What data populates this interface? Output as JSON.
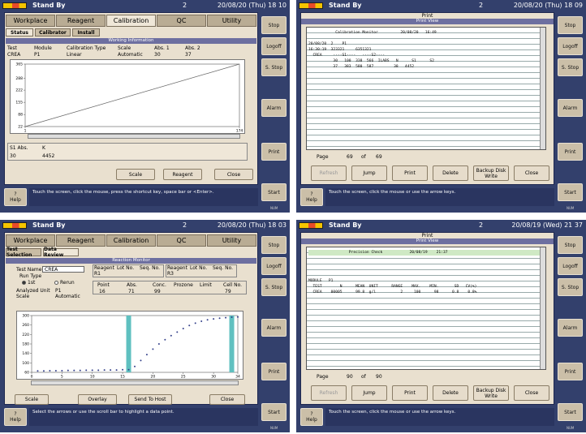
{
  "screens": [
    {
      "kind": "calibration",
      "mode": "Stand By",
      "count": "2",
      "datetime": "20/08/20 (Thu) 18 10",
      "tabs": [
        "Workplace",
        "Reagent",
        "Calibration",
        "QC",
        "Utility"
      ],
      "active_tab": 2,
      "subtabs": [
        "Status",
        "Calibrator",
        "Install"
      ],
      "active_subtab": 0,
      "section": "Working Information",
      "info": {
        "headers": [
          "Test",
          "Module",
          "Calibration Type",
          "Scale",
          "Abs. 1",
          "Abs. 2"
        ],
        "values": [
          "CREA",
          "P1",
          "Linear",
          "Automatic",
          "30",
          "37"
        ]
      },
      "chart": {
        "type": "line",
        "x": [
          1,
          174
        ],
        "values": [
          22,
          365
        ],
        "xlim": [
          1,
          174
        ],
        "ylim": [
          22,
          365
        ],
        "xticks": [
          1,
          174
        ],
        "yticks": [
          22,
          88,
          155,
          222,
          288,
          365
        ]
      },
      "abs": {
        "headers": [
          "S1 Abs.",
          "K"
        ],
        "values": [
          "30",
          "4452"
        ]
      },
      "buttons": [
        "Scale",
        "Reagent",
        "Close"
      ],
      "side_buttons": [
        "Stop",
        "Logoff",
        "S. Stop",
        "Alarm",
        "Print",
        "Start"
      ],
      "help_icon": "?",
      "help": "Help",
      "message": "Touch the screen, click the mouse, press the shortcut key, space bar or <Enter>.",
      "status": "NUM"
    },
    {
      "kind": "print",
      "mode": "Stand By",
      "count": "2",
      "datetime": "20/08/20 (Thu) 18 09",
      "title": "Print",
      "subtitle": "Print View",
      "doc_lines": [
        "            Calibration Monitor          20/08/20   16:49",
        "",
        "20/08/20  2    P1",
        "16:30:19  323321     6351321",
        "  CREA     ----S1----   ----S2----",
        "           30   100  338  566  ILABS   N      S1      S2",
        "           37   383  580  587         38   4452"
      ],
      "highlight_first": false,
      "page_label": "Page",
      "page": "69",
      "of_label": "of",
      "pages": "69",
      "buttons": [
        "Refresh",
        "Jump",
        "Print",
        "Delete",
        "Backup Disk Write",
        "Close"
      ],
      "disabled_button": 0,
      "side_buttons": [
        "Stop",
        "Logoff",
        "S. Stop",
        "Alarm",
        "Print",
        "Start"
      ],
      "help_icon": "?",
      "help": "Help",
      "message": "Touch the screen, click the mouse or use the arrow keys.",
      "status": "NUM"
    },
    {
      "kind": "reaction",
      "mode": "Stand By",
      "count": "2",
      "datetime": "20/08/20 (Thu) 18 03",
      "tabs": [
        "Workplace",
        "Reagent",
        "Calibration",
        "QC",
        "Utility"
      ],
      "active_tab": -1,
      "subtabs": [
        "Test Selection",
        "Data Review"
      ],
      "active_subtab": 1,
      "section": "Reaction Monitor",
      "form": {
        "test_name_label": "Test Name",
        "test_name": "CREA",
        "run_type_label": "Run Type",
        "run_options": [
          "1st",
          "Rerun"
        ],
        "run_selected": 0,
        "unit_label": "Analyzed Unit",
        "unit": "P1",
        "scale_label": "Scale",
        "scale": "Automatic"
      },
      "reagents": [
        {
          "headers": [
            "Reagent",
            "Lot No.",
            "Seq. No."
          ],
          "row": [
            "R1"
          ]
        },
        {
          "headers": [
            "Reagent",
            "Lot No.",
            "Seq. No."
          ],
          "row": [
            "R3"
          ]
        }
      ],
      "point": {
        "headers": [
          "Point",
          "Abs.",
          "Conc.",
          "Prozone",
          "Limit",
          "Cell No."
        ],
        "values": [
          "16",
          "71",
          "99",
          null,
          null,
          "79"
        ]
      },
      "chart": {
        "type": "scatter",
        "x": [
          1,
          2,
          3,
          4,
          5,
          6,
          7,
          8,
          9,
          10,
          11,
          12,
          13,
          14,
          15,
          16,
          17,
          18,
          19,
          20,
          21,
          22,
          23,
          24,
          25,
          26,
          27,
          28,
          29,
          30,
          31,
          32,
          33,
          34
        ],
        "values": [
          66,
          66,
          67,
          67,
          67,
          68,
          68,
          68,
          69,
          69,
          69,
          70,
          70,
          70,
          71,
          71,
          85,
          110,
          135,
          158,
          180,
          198,
          215,
          230,
          245,
          258,
          268,
          276,
          282,
          286,
          289,
          291,
          293,
          294
        ],
        "highlight_x": [
          16,
          33
        ],
        "xlim": [
          0,
          34
        ],
        "ylim": [
          60,
          300
        ],
        "xticks": [
          0,
          5,
          10,
          15,
          20,
          25,
          30,
          34
        ],
        "yticks": [
          60,
          100,
          140,
          180,
          220,
          260,
          300
        ]
      },
      "buttons": [
        "Scale",
        "Overlay",
        "Send To Host",
        "Close"
      ],
      "side_buttons": [
        "Stop",
        "Logoff",
        "S. Stop",
        "Alarm",
        "Print",
        "Start"
      ],
      "help_icon": "?",
      "help": "Help",
      "message": "Select the arrows or use the scroll bar to highlight a data point.",
      "status": "NUM"
    },
    {
      "kind": "print",
      "mode": "Stand By",
      "count": "2",
      "datetime": "20/08/19 (Wed) 21 37",
      "title": "Print",
      "subtitle": "Print View",
      "doc_lines": [
        "                  Precision Check            20/08/19    21:37",
        "",
        "",
        "",
        "",
        "MODULE   P1",
        "  TEST        N      MEAN  UNIT      RANGE    MAX.    MIN.       SD   CV(%)",
        "  CREA    00005      99.8  g/l           2     100      98      0.8    0.8%"
      ],
      "highlight_first": true,
      "page_label": "Page",
      "page": "90",
      "of_label": "of",
      "pages": "90",
      "buttons": [
        "Refresh",
        "Jump",
        "Print",
        "Delete",
        "Backup Disk Write",
        "Close"
      ],
      "disabled_button": 0,
      "side_buttons": [
        "Stop",
        "Logoff",
        "S. Stop",
        "Alarm",
        "Print",
        "Start"
      ],
      "help_icon": "?",
      "help": "Help",
      "message": "Touch the screen, click the mouse or use the arrow keys.",
      "status": "NUM"
    }
  ]
}
